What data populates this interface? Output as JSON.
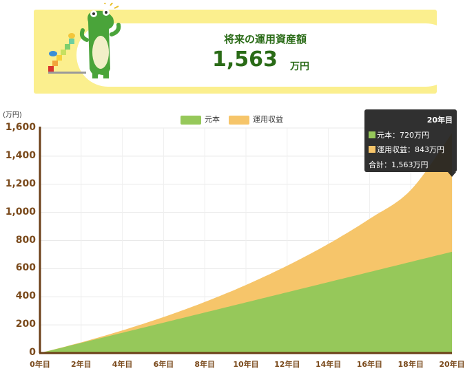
{
  "banner": {
    "title": "将来の運用資産額",
    "amount": "1,563",
    "unit": "万円"
  },
  "colors": {
    "principal": "#96c85a",
    "gain": "#f6c56a",
    "axis": "#6b3f17",
    "banner_bg": "#fbef8e",
    "text_green": "#2a6b17"
  },
  "chart_data": {
    "type": "area",
    "y_unit_label": "(万円)",
    "ylim": [
      0,
      1600
    ],
    "y_ticks": [
      "0",
      "200",
      "400",
      "600",
      "800",
      "1,000",
      "1,200",
      "1,400",
      "1,600"
    ],
    "x_labels": [
      "0年目",
      "2年目",
      "4年目",
      "6年目",
      "8年目",
      "10年目",
      "12年目",
      "14年目",
      "16年目",
      "18年目",
      "20年目"
    ],
    "x": [
      0,
      2,
      4,
      6,
      8,
      10,
      12,
      14,
      16,
      18,
      20
    ],
    "stacked": true,
    "grid": true,
    "legend_position": "top-center",
    "series": [
      {
        "name": "元本",
        "values": [
          0,
          72,
          144,
          216,
          288,
          360,
          432,
          504,
          576,
          648,
          720
        ]
      },
      {
        "name": "運用収益",
        "values": [
          0,
          4,
          17,
          40,
          75,
          124,
          189,
          272,
          378,
          511,
          843
        ]
      }
    ],
    "tooltip": {
      "title": "20年目",
      "principal_label": "元本：720万円",
      "gain_label": "運用収益：843万円",
      "total_label": "合計：1,563万円"
    }
  }
}
